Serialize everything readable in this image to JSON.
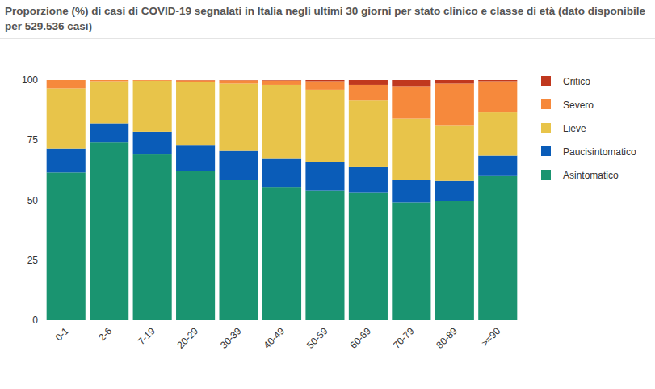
{
  "chart_data": {
    "type": "bar",
    "stacked": true,
    "title": "Proporzione (%) di casi di COVID-19 segnalati in Italia negli ultimi 30 giorni per stato clinico e classe di età (dato disponibile per 529.536 casi)",
    "categories": [
      "0-1",
      "2-6",
      "7-19",
      "20-29",
      "30-39",
      "40-49",
      "50-59",
      "60-69",
      "70-79",
      "80-89",
      ">=90"
    ],
    "series": [
      {
        "name": "Asintomatico",
        "color": "#1a9470",
        "values": [
          61.5,
          74,
          69,
          62,
          58.5,
          55.5,
          54,
          53,
          49,
          49.5,
          60
        ]
      },
      {
        "name": "Paucisintomatico",
        "color": "#0a5cb8",
        "values": [
          10,
          8,
          9.5,
          11,
          12,
          12,
          12,
          11,
          9.5,
          8.5,
          8.5
        ]
      },
      {
        "name": "Lieve",
        "color": "#e8c44a",
        "values": [
          25,
          17.5,
          21.2,
          26.3,
          28,
          30.5,
          30,
          27.5,
          25.5,
          23,
          18
        ]
      },
      {
        "name": "Severo",
        "color": "#f6893c",
        "values": [
          3.5,
          0.5,
          0.3,
          0.6,
          1.4,
          1.8,
          3.5,
          6.5,
          13.5,
          17.5,
          13
        ]
      },
      {
        "name": "Critico",
        "color": "#c0381e",
        "values": [
          0,
          0,
          0,
          0.1,
          0.1,
          0.2,
          0.5,
          2,
          2.5,
          1.5,
          0.5
        ]
      }
    ],
    "ylim": [
      0,
      100
    ],
    "yticks": [
      0,
      25,
      50,
      75,
      100
    ],
    "grid": false,
    "legend": "right"
  }
}
